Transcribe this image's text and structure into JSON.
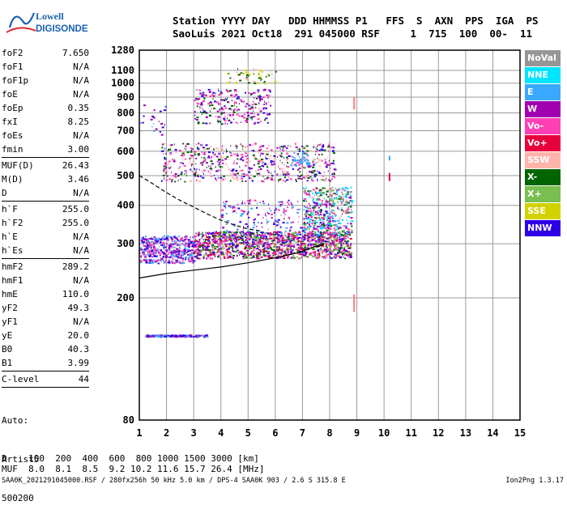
{
  "logo": {
    "line1": "Lowell",
    "line2": "DIGISONDE"
  },
  "header": {
    "line1": "Station YYYY DAY   DDD HHMMSS P1   FFS  S  AXN  PPS  IGA  PS",
    "line2": "SaoLuis 2021 Oct18  291 045000 RSF     1  715  100  00-  11"
  },
  "parameters": [
    {
      "name": "foF2",
      "value": "7.650"
    },
    {
      "name": "foF1",
      "value": "N/A"
    },
    {
      "name": "foF1p",
      "value": "N/A"
    },
    {
      "name": "foE",
      "value": "N/A"
    },
    {
      "name": "foEp",
      "value": "0.35"
    },
    {
      "name": "fxI",
      "value": "8.25"
    },
    {
      "name": "foEs",
      "value": "N/A"
    },
    {
      "name": "fmin",
      "value": "3.00"
    },
    {
      "sep": true
    },
    {
      "name": "MUF(D)",
      "value": "26.43"
    },
    {
      "name": "M(D)",
      "value": "3.46"
    },
    {
      "name": "D",
      "value": "N/A"
    },
    {
      "sep": true
    },
    {
      "name": "h`F",
      "value": "255.0"
    },
    {
      "name": "h`F2",
      "value": "255.0"
    },
    {
      "name": "h`E",
      "value": "N/A"
    },
    {
      "name": "h`Es",
      "value": "N/A"
    },
    {
      "sep": true
    },
    {
      "name": "hmF2",
      "value": "289.2"
    },
    {
      "name": "hmF1",
      "value": "N/A"
    },
    {
      "name": "hmE",
      "value": "110.0"
    },
    {
      "name": "yF2",
      "value": "49.3"
    },
    {
      "name": "yF1",
      "value": "N/A"
    },
    {
      "name": "yE",
      "value": "20.0"
    },
    {
      "name": "B0",
      "value": "40.3"
    },
    {
      "name": "B1",
      "value": "3.99"
    },
    {
      "sep": true
    },
    {
      "name": "C-level",
      "value": "44"
    },
    {
      "sep": true
    }
  ],
  "artist": {
    "line1": "Auto:",
    "line2": "Artist5",
    "line3": "500200"
  },
  "muf_table": {
    "line1": "D    100  200  400  600  800 1000 1500 3000 [km]",
    "line2": "MUF  8.0  8.1  8.5  9.2 10.2 11.6 15.7 26.4 [MHz]"
  },
  "footer": {
    "text": "SAA0K_2021291045000.RSF / 280fx256h 50 kHz 5.0 km / DPS-4 SAA0K 903 / 2.6 S 315.8 E",
    "version": "Ion2Png 1.3.17"
  },
  "legend": [
    {
      "label": "NoVal",
      "color": "#969696"
    },
    {
      "label": "NNE",
      "color": "#00e5ff"
    },
    {
      "label": "E",
      "color": "#3aa8ff"
    },
    {
      "label": "W",
      "color": "#a000b0"
    },
    {
      "label": "Vo-",
      "color": "#ff3fb4"
    },
    {
      "label": "Vo+",
      "color": "#e6003c"
    },
    {
      "label": "SSW",
      "color": "#ffb4aa"
    },
    {
      "label": "X-",
      "color": "#006400"
    },
    {
      "label": "X+",
      "color": "#78be50"
    },
    {
      "label": "SSE",
      "color": "#d2d200"
    },
    {
      "label": "NNW",
      "color": "#2d00e6"
    }
  ],
  "chart_data": {
    "type": "scatter",
    "xlim": [
      1,
      15
    ],
    "ylim": [
      80,
      1280
    ],
    "x_ticks": [
      1,
      2,
      3,
      4,
      5,
      6,
      7,
      8,
      9,
      10,
      11,
      12,
      13,
      14,
      15
    ],
    "y_ticks": [
      80,
      200,
      300,
      400,
      500,
      600,
      700,
      800,
      900,
      1000,
      1100,
      1280
    ],
    "y_scale": "log",
    "grid": true,
    "traces": [
      {
        "name": "trace-o",
        "points": [
          [
            1.0,
            232
          ],
          [
            2.0,
            240
          ],
          [
            3.0,
            246
          ],
          [
            4.0,
            252
          ],
          [
            5.0,
            260
          ],
          [
            6.0,
            270
          ],
          [
            6.8,
            280
          ],
          [
            7.3,
            290
          ],
          [
            7.6,
            297
          ],
          [
            7.8,
            300
          ],
          [
            7.7,
            296
          ],
          [
            7.5,
            292
          ]
        ],
        "color": "#000000"
      },
      {
        "name": "trace-x",
        "points": [
          [
            1.0,
            500
          ],
          [
            1.5,
            470
          ],
          [
            2.0,
            440
          ],
          [
            2.5,
            415
          ],
          [
            3.0,
            395
          ],
          [
            3.5,
            375
          ],
          [
            4.0,
            358
          ],
          [
            4.5,
            345
          ],
          [
            5.0,
            335
          ],
          [
            5.5,
            330
          ]
        ],
        "color": "#000000"
      }
    ],
    "echo_regions": [
      {
        "x": [
          1.0,
          3.0
        ],
        "y": [
          260,
          320
        ],
        "count": 520,
        "colors": [
          "#2d00e6",
          "#a000b0",
          "#ff3fb4",
          "#3aa8ff"
        ]
      },
      {
        "x": [
          3.0,
          8.8
        ],
        "y": [
          270,
          330
        ],
        "count": 1400,
        "colors": [
          "#2d00e6",
          "#ff3fb4",
          "#e6003c",
          "#006400",
          "#78be50",
          "#a000b0"
        ]
      },
      {
        "x": [
          7.0,
          8.8
        ],
        "y": [
          320,
          460
        ],
        "count": 450,
        "colors": [
          "#ff3fb4",
          "#78be50",
          "#00e5ff",
          "#3aa8ff",
          "#006400",
          "#a000b0"
        ]
      },
      {
        "x": [
          4.0,
          8.2
        ],
        "y": [
          300,
          420
        ],
        "count": 260,
        "colors": [
          "#2d00e6",
          "#a000b0",
          "#ff3fb4",
          "#3aa8ff"
        ]
      },
      {
        "x": [
          1.2,
          3.5
        ],
        "y": [
          150,
          152
        ],
        "count": 170,
        "colors": [
          "#2d00e6",
          "#3aa8ff",
          "#a000b0"
        ]
      },
      {
        "x": [
          1.8,
          8.2
        ],
        "y": [
          480,
          640
        ],
        "count": 650,
        "colors": [
          "#ff3fb4",
          "#a000b0",
          "#2d00e6",
          "#006400",
          "#ffb4aa"
        ]
      },
      {
        "x": [
          3.0,
          5.8
        ],
        "y": [
          740,
          960
        ],
        "count": 280,
        "colors": [
          "#a000b0",
          "#ff3fb4",
          "#006400",
          "#2d00e6"
        ]
      },
      {
        "x": [
          4.2,
          6.0
        ],
        "y": [
          1000,
          1120
        ],
        "count": 60,
        "colors": [
          "#d2d200",
          "#ffb4aa",
          "#006400"
        ]
      },
      {
        "x": [
          1.0,
          2.0
        ],
        "y": [
          680,
          860
        ],
        "count": 25,
        "colors": [
          "#2d00e6",
          "#3aa8ff",
          "#a000b0"
        ]
      },
      {
        "x": [
          6.5,
          7.5
        ],
        "y": [
          540,
          600
        ],
        "count": 40,
        "colors": [
          "#3aa8ff"
        ]
      }
    ],
    "vertical_marks": [
      {
        "x": 8.9,
        "y": [
          820,
          900
        ],
        "color": "#ff7a7a"
      },
      {
        "x": 8.9,
        "y": [
          180,
          205
        ],
        "color": "#ff7a7a"
      },
      {
        "x": 10.2,
        "y": [
          480,
          510
        ],
        "color": "#e6003c"
      },
      {
        "x": 10.2,
        "y": [
          560,
          580
        ],
        "color": "#3aa8ff"
      }
    ]
  }
}
